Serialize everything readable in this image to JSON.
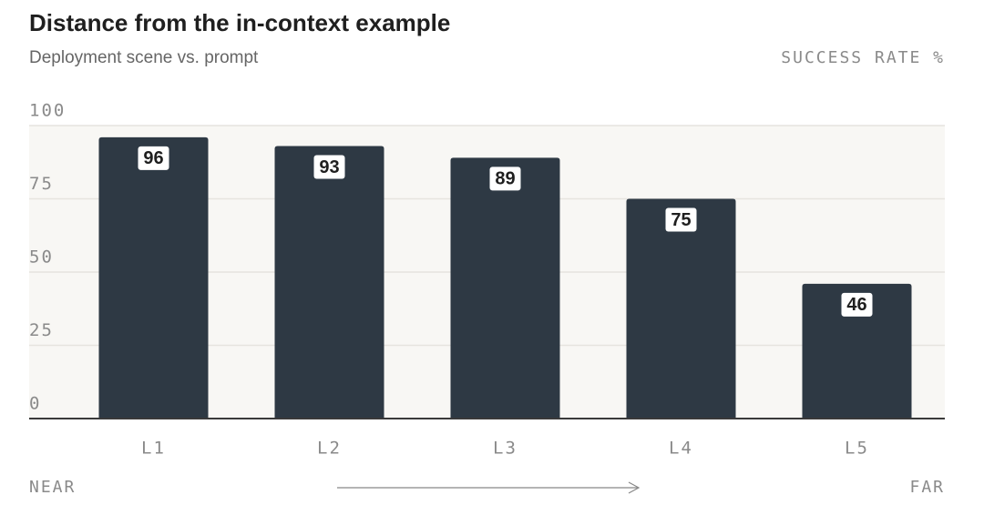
{
  "chart_data": {
    "type": "bar",
    "title": "Distance from the in-context example",
    "subtitle": "Deployment scene vs. prompt",
    "y_axis_label": "SUCCESS RATE %",
    "categories": [
      "L1",
      "L2",
      "L3",
      "L4",
      "L5"
    ],
    "values": [
      96,
      93,
      89,
      75,
      46
    ],
    "color": "#2e3944",
    "ylim": [
      0,
      100
    ],
    "yticks": [
      0,
      25,
      50,
      75,
      100
    ],
    "grid": true,
    "annotations": [
      "NEAR",
      "FAR"
    ]
  }
}
